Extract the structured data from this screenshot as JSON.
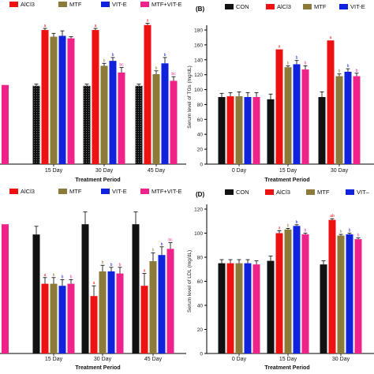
{
  "colors": {
    "CON": "#111111",
    "AlCl3": "#ee1111",
    "MTF": "#8c7a3a",
    "VIT-E": "#1122dd",
    "MTF+VIT-E": "#ee2288",
    "axis": "#000000",
    "error": "#000000"
  },
  "chart_data": [
    {
      "panel": "top-left",
      "type": "bar",
      "panel_label": "",
      "legend": [
        "AlCl3",
        "MTF",
        "VIT-E",
        "MTF+VIT-E"
      ],
      "categories": [
        "15 Day",
        "30 Day",
        "45 Day"
      ],
      "partial_left_bar": {
        "series": "MTF+VIT-E",
        "value": 95
      },
      "series": [
        {
          "name": "CON",
          "values": [
            94,
            94,
            94
          ],
          "errors": [
            2,
            2,
            2
          ]
        },
        {
          "name": "AlCl3",
          "values": [
            161,
            161,
            167
          ],
          "errors": [
            2,
            2,
            2
          ],
          "labels": [
            "a",
            "a",
            "a"
          ]
        },
        {
          "name": "MTF",
          "values": [
            153,
            118,
            108
          ],
          "errors": [
            4,
            3,
            4
          ],
          "labels": [
            "",
            "b",
            "b"
          ]
        },
        {
          "name": "VIT-E",
          "values": [
            154,
            124,
            121
          ],
          "errors": [
            6,
            4,
            7
          ],
          "labels": [
            "",
            "b",
            "b"
          ]
        },
        {
          "name": "MTF+VIT-E",
          "values": [
            151,
            110,
            100
          ],
          "errors": [
            2,
            6,
            5
          ],
          "labels": [
            "",
            "bc",
            "bc"
          ]
        }
      ],
      "xlabel": "Treatment Period",
      "ylabel": "",
      "ylim": [
        0,
        180
      ]
    },
    {
      "panel": "top-right",
      "type": "bar",
      "panel_label": "(B)",
      "legend": [
        "CON",
        "AlCl3",
        "MTF",
        "VIT-E"
      ],
      "categories": [
        "0 Day",
        "15 Day",
        "30 Day"
      ],
      "series": [
        {
          "name": "CON",
          "values": [
            90,
            87,
            90
          ],
          "errors": [
            5,
            7,
            7
          ]
        },
        {
          "name": "AlCl3",
          "values": [
            91,
            154,
            166
          ],
          "errors": [
            5,
            0,
            0
          ],
          "labels": [
            "",
            "a",
            "a"
          ]
        },
        {
          "name": "MTF",
          "values": [
            91,
            130,
            118
          ],
          "errors": [
            6,
            2,
            3
          ],
          "labels": [
            "",
            "b",
            "b"
          ]
        },
        {
          "name": "VIT-E",
          "values": [
            90,
            134,
            124
          ],
          "errors": [
            6,
            5,
            4
          ],
          "labels": [
            "",
            "b",
            "b"
          ]
        },
        {
          "name": "MTF+VIT-E",
          "values": [
            90,
            127,
            118
          ],
          "errors": [
            6,
            5,
            4
          ],
          "labels": [
            "",
            "b",
            "b"
          ]
        }
      ],
      "xlabel": "Treatment Period",
      "ylabel": "Serum level of TGs (mg/dL)",
      "yticks": [
        0,
        20,
        40,
        60,
        80,
        100,
        120,
        140,
        160,
        180
      ],
      "ylim": [
        0,
        180
      ]
    },
    {
      "panel": "bottom-left",
      "type": "bar",
      "panel_label": "",
      "legend": [
        "AlCl3",
        "MTF",
        "VIT-E",
        "MTF+VIT-E"
      ],
      "categories": [
        "15 Day",
        "30 Day",
        "45 Day"
      ],
      "partial_left_bar": {
        "series": "MTF+VIT-E",
        "value": 63
      },
      "series": [
        {
          "name": "CON",
          "values": [
            58,
            63,
            63
          ],
          "errors": [
            4,
            6,
            6
          ]
        },
        {
          "name": "AlCl3",
          "values": [
            34,
            28,
            33
          ],
          "errors": [
            3,
            5,
            6
          ],
          "labels": [
            "a",
            "a",
            "a"
          ]
        },
        {
          "name": "MTF",
          "values": [
            34,
            40,
            45
          ],
          "errors": [
            3,
            3,
            4
          ],
          "labels": [
            "b",
            "b",
            "b"
          ]
        },
        {
          "name": "VIT-E",
          "values": [
            33,
            40,
            48
          ],
          "errors": [
            3,
            2,
            4
          ],
          "labels": [
            "b",
            "b",
            "b"
          ]
        },
        {
          "name": "MTF+VIT-E",
          "values": [
            34,
            39,
            51
          ],
          "errors": [
            2,
            3,
            3
          ],
          "labels": [
            "b",
            "b",
            "bc"
          ]
        }
      ],
      "xlabel": "Treatment Period",
      "ylabel": "",
      "ylim": [
        0,
        70
      ]
    },
    {
      "panel": "bottom-right",
      "type": "bar",
      "panel_label": "(D)",
      "legend": [
        "CON",
        "AlCl3",
        "MTF",
        "VIT–"
      ],
      "categories": [
        "0 Day",
        "15 Day",
        "30 Day"
      ],
      "series": [
        {
          "name": "CON",
          "values": [
            75,
            77,
            74
          ],
          "errors": [
            3,
            4,
            3
          ]
        },
        {
          "name": "AlCl3",
          "values": [
            75,
            100,
            111
          ],
          "errors": [
            3,
            2,
            1
          ],
          "labels": [
            "",
            "a",
            "ab"
          ]
        },
        {
          "name": "MTF",
          "values": [
            75,
            103,
            98
          ],
          "errors": [
            3,
            1,
            1
          ],
          "labels": [
            "",
            "b",
            "b"
          ]
        },
        {
          "name": "VIT-E",
          "values": [
            75,
            106,
            99
          ],
          "errors": [
            3,
            1,
            1
          ],
          "labels": [
            "",
            "b",
            "b"
          ]
        },
        {
          "name": "MTF+VIT-E",
          "values": [
            74,
            99,
            95
          ],
          "errors": [
            3,
            1,
            1
          ],
          "labels": [
            "",
            "b",
            "b"
          ]
        }
      ],
      "xlabel": "Treatment Period",
      "ylabel": "Serum level of LDL (mg/dL)",
      "yticks": [
        0,
        20,
        40,
        60,
        80,
        100,
        120
      ],
      "ylim": [
        0,
        120
      ]
    }
  ]
}
